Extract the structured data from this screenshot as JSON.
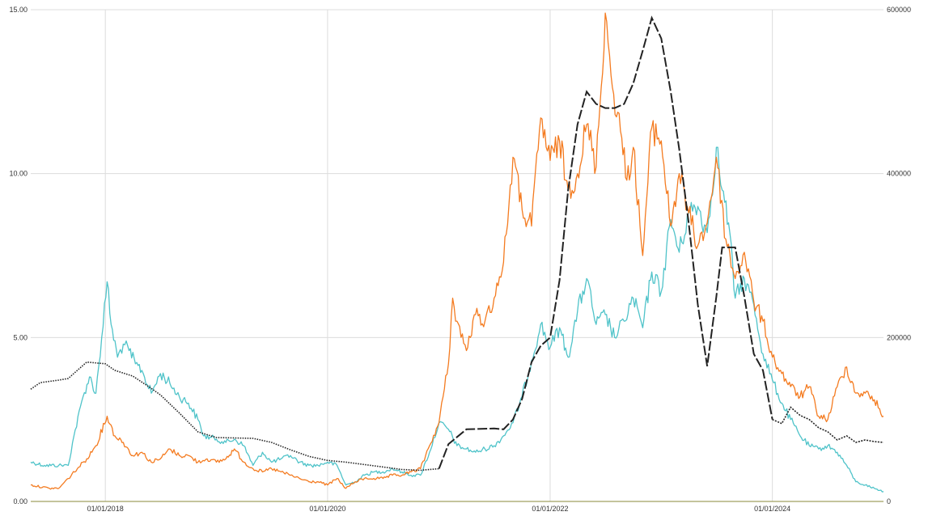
{
  "chart_data": {
    "type": "line",
    "title": "",
    "xlabel": "",
    "ylabel_left": "",
    "ylabel_right": "",
    "grid": true,
    "legend": "none",
    "x_range": [
      "2017-05-01",
      "2024-12-31"
    ],
    "x_ticks": [
      {
        "date": "2018-01-01",
        "label": "01/01/2018"
      },
      {
        "date": "2020-01-01",
        "label": "01/01/2020"
      },
      {
        "date": "2022-01-01",
        "label": "01/01/2022"
      },
      {
        "date": "2024-01-01",
        "label": "01/01/2024"
      }
    ],
    "y_left": {
      "range": [
        0,
        15
      ],
      "ticks": [
        0,
        5,
        10,
        15
      ],
      "tick_labels": [
        "0.00",
        "5.00",
        "10.00",
        "15.00"
      ]
    },
    "y_right": {
      "range": [
        0,
        600000
      ],
      "ticks": [
        0,
        200000,
        400000,
        600000
      ],
      "tick_labels": [
        "0",
        "200000",
        "400000",
        "600000"
      ]
    },
    "series": [
      {
        "axis": "left",
        "color": "#4fc3c9",
        "style": "solid",
        "points": [
          [
            "2017-05-01",
            1.2
          ],
          [
            "2017-06-15",
            1.1
          ],
          [
            "2017-08-01",
            1.1
          ],
          [
            "2017-09-01",
            1.1
          ],
          [
            "2017-09-20",
            2.0
          ],
          [
            "2017-10-20",
            3.2
          ],
          [
            "2017-11-10",
            3.8
          ],
          [
            "2017-12-01",
            3.3
          ],
          [
            "2017-12-20",
            5.0
          ],
          [
            "2018-01-07",
            6.7
          ],
          [
            "2018-01-20",
            5.4
          ],
          [
            "2018-02-10",
            4.4
          ],
          [
            "2018-03-01",
            4.8
          ],
          [
            "2018-03-20",
            4.6
          ],
          [
            "2018-04-10",
            4.2
          ],
          [
            "2018-05-01",
            4.0
          ],
          [
            "2018-06-01",
            3.3
          ],
          [
            "2018-07-01",
            3.9
          ],
          [
            "2018-08-01",
            3.6
          ],
          [
            "2018-09-01",
            3.2
          ],
          [
            "2018-10-01",
            3.0
          ],
          [
            "2018-11-01",
            2.5
          ],
          [
            "2018-11-20",
            2.0
          ],
          [
            "2019-01-01",
            1.9
          ],
          [
            "2019-02-01",
            1.8
          ],
          [
            "2019-03-01",
            1.9
          ],
          [
            "2019-04-01",
            1.7
          ],
          [
            "2019-05-01",
            1.1
          ],
          [
            "2019-06-01",
            1.5
          ],
          [
            "2019-07-01",
            1.2
          ],
          [
            "2019-08-01",
            1.3
          ],
          [
            "2019-09-01",
            1.4
          ],
          [
            "2019-10-01",
            1.2
          ],
          [
            "2019-11-01",
            1.1
          ],
          [
            "2019-12-01",
            1.1
          ],
          [
            "2020-01-01",
            1.2
          ],
          [
            "2020-02-01",
            1.1
          ],
          [
            "2020-03-01",
            0.5
          ],
          [
            "2020-04-01",
            0.6
          ],
          [
            "2020-05-01",
            0.8
          ],
          [
            "2020-06-01",
            0.9
          ],
          [
            "2020-07-01",
            0.9
          ],
          [
            "2020-08-01",
            1.0
          ],
          [
            "2020-09-01",
            0.9
          ],
          [
            "2020-10-01",
            0.8
          ],
          [
            "2020-11-01",
            0.8
          ],
          [
            "2020-12-01",
            1.5
          ],
          [
            "2021-01-01",
            2.4
          ],
          [
            "2021-02-01",
            2.2
          ],
          [
            "2021-03-01",
            1.7
          ],
          [
            "2021-04-01",
            1.6
          ],
          [
            "2021-05-01",
            1.5
          ],
          [
            "2021-06-01",
            1.6
          ],
          [
            "2021-07-01",
            1.7
          ],
          [
            "2021-08-01",
            2.0
          ],
          [
            "2021-09-01",
            2.4
          ],
          [
            "2021-10-01",
            3.2
          ],
          [
            "2021-11-01",
            4.3
          ],
          [
            "2021-12-01",
            5.4
          ],
          [
            "2022-01-01",
            4.7
          ],
          [
            "2022-02-01",
            5.3
          ],
          [
            "2022-03-01",
            4.4
          ],
          [
            "2022-04-01",
            5.8
          ],
          [
            "2022-05-01",
            6.8
          ],
          [
            "2022-06-01",
            5.4
          ],
          [
            "2022-07-01",
            5.7
          ],
          [
            "2022-08-01",
            5.0
          ],
          [
            "2022-09-01",
            5.5
          ],
          [
            "2022-10-01",
            6.2
          ],
          [
            "2022-11-01",
            5.3
          ],
          [
            "2022-12-01",
            7.0
          ],
          [
            "2023-01-01",
            6.4
          ],
          [
            "2023-02-01",
            8.6
          ],
          [
            "2023-03-01",
            7.6
          ],
          [
            "2023-04-01",
            8.8
          ],
          [
            "2023-05-01",
            9.0
          ],
          [
            "2023-06-01",
            8.2
          ],
          [
            "2023-07-01",
            10.8
          ],
          [
            "2023-07-20",
            9.5
          ],
          [
            "2023-08-10",
            8.5
          ],
          [
            "2023-09-01",
            6.2
          ],
          [
            "2023-10-01",
            6.8
          ],
          [
            "2023-11-01",
            6.0
          ],
          [
            "2023-12-01",
            4.5
          ],
          [
            "2024-01-01",
            3.7
          ],
          [
            "2024-02-01",
            3.0
          ],
          [
            "2024-03-01",
            2.5
          ],
          [
            "2024-04-01",
            2.0
          ],
          [
            "2024-05-01",
            1.7
          ],
          [
            "2024-06-01",
            1.6
          ],
          [
            "2024-07-01",
            1.7
          ],
          [
            "2024-08-01",
            1.5
          ],
          [
            "2024-09-01",
            1.1
          ],
          [
            "2024-10-01",
            0.6
          ],
          [
            "2024-11-01",
            0.5
          ],
          [
            "2024-12-01",
            0.4
          ],
          [
            "2024-12-31",
            0.3
          ]
        ]
      },
      {
        "axis": "left",
        "color": "#f47b20",
        "style": "solid",
        "points": [
          [
            "2017-05-01",
            0.5
          ],
          [
            "2017-07-01",
            0.4
          ],
          [
            "2017-08-01",
            0.4
          ],
          [
            "2017-09-01",
            0.7
          ],
          [
            "2017-10-01",
            1.0
          ],
          [
            "2017-11-01",
            1.3
          ],
          [
            "2017-12-01",
            1.7
          ],
          [
            "2018-01-07",
            2.6
          ],
          [
            "2018-02-01",
            2.0
          ],
          [
            "2018-03-01",
            1.8
          ],
          [
            "2018-04-01",
            1.4
          ],
          [
            "2018-05-01",
            1.5
          ],
          [
            "2018-06-01",
            1.2
          ],
          [
            "2018-07-01",
            1.3
          ],
          [
            "2018-08-01",
            1.6
          ],
          [
            "2018-09-01",
            1.4
          ],
          [
            "2018-10-01",
            1.4
          ],
          [
            "2018-11-01",
            1.2
          ],
          [
            "2018-12-01",
            1.3
          ],
          [
            "2019-01-01",
            1.2
          ],
          [
            "2019-02-01",
            1.3
          ],
          [
            "2019-03-01",
            1.6
          ],
          [
            "2019-04-01",
            1.2
          ],
          [
            "2019-05-01",
            1.0
          ],
          [
            "2019-06-01",
            0.9
          ],
          [
            "2019-07-01",
            1.0
          ],
          [
            "2019-08-01",
            0.9
          ],
          [
            "2019-09-01",
            0.8
          ],
          [
            "2019-10-01",
            0.7
          ],
          [
            "2019-11-01",
            0.6
          ],
          [
            "2019-12-01",
            0.6
          ],
          [
            "2020-01-01",
            0.5
          ],
          [
            "2020-02-01",
            0.7
          ],
          [
            "2020-03-01",
            0.4
          ],
          [
            "2020-04-01",
            0.6
          ],
          [
            "2020-05-01",
            0.7
          ],
          [
            "2020-06-01",
            0.7
          ],
          [
            "2020-07-01",
            0.7
          ],
          [
            "2020-08-01",
            0.8
          ],
          [
            "2020-09-01",
            0.8
          ],
          [
            "2020-10-01",
            0.9
          ],
          [
            "2020-11-01",
            1.0
          ],
          [
            "2020-12-01",
            1.7
          ],
          [
            "2021-01-01",
            2.4
          ],
          [
            "2021-02-01",
            4.2
          ],
          [
            "2021-02-15",
            6.2
          ],
          [
            "2021-03-01",
            5.5
          ],
          [
            "2021-04-01",
            4.6
          ],
          [
            "2021-05-01",
            5.7
          ],
          [
            "2021-06-01",
            5.5
          ],
          [
            "2021-07-01",
            6.2
          ],
          [
            "2021-08-01",
            7.3
          ],
          [
            "2021-09-01",
            10.5
          ],
          [
            "2021-10-01",
            8.9
          ],
          [
            "2021-11-01",
            8.4
          ],
          [
            "2021-12-01",
            11.7
          ],
          [
            "2022-01-01",
            10.4
          ],
          [
            "2022-02-01",
            11.0
          ],
          [
            "2022-03-01",
            9.5
          ],
          [
            "2022-04-01",
            10.0
          ],
          [
            "2022-05-01",
            11.5
          ],
          [
            "2022-06-01",
            10.2
          ],
          [
            "2022-07-01",
            14.9
          ],
          [
            "2022-07-20",
            13.0
          ],
          [
            "2022-08-20",
            11.3
          ],
          [
            "2022-09-10",
            9.8
          ],
          [
            "2022-10-01",
            10.8
          ],
          [
            "2022-11-01",
            7.5
          ],
          [
            "2022-12-01",
            11.4
          ],
          [
            "2023-01-01",
            11.0
          ],
          [
            "2023-02-01",
            8.4
          ],
          [
            "2023-03-01",
            10.0
          ],
          [
            "2023-04-01",
            8.8
          ],
          [
            "2023-05-01",
            7.8
          ],
          [
            "2023-06-01",
            8.5
          ],
          [
            "2023-07-01",
            10.5
          ],
          [
            "2023-08-01",
            8.0
          ],
          [
            "2023-09-01",
            6.8
          ],
          [
            "2023-10-01",
            7.6
          ],
          [
            "2023-11-01",
            6.1
          ],
          [
            "2023-12-01",
            5.5
          ],
          [
            "2024-01-01",
            4.4
          ],
          [
            "2024-02-01",
            3.9
          ],
          [
            "2024-03-01",
            3.5
          ],
          [
            "2024-04-01",
            3.2
          ],
          [
            "2024-05-01",
            3.5
          ],
          [
            "2024-06-01",
            2.6
          ],
          [
            "2024-07-01",
            2.5
          ],
          [
            "2024-08-01",
            3.5
          ],
          [
            "2024-09-01",
            4.1
          ],
          [
            "2024-10-01",
            3.3
          ],
          [
            "2024-11-01",
            3.3
          ],
          [
            "2024-12-01",
            3.1
          ],
          [
            "2024-12-31",
            2.6
          ]
        ]
      },
      {
        "axis": "right",
        "color": "#222222",
        "style": "dotted-then-dashed",
        "points": [
          [
            "2017-05-01",
            137000
          ],
          [
            "2017-06-01",
            145000
          ],
          [
            "2017-08-01",
            148000
          ],
          [
            "2017-09-01",
            150000
          ],
          [
            "2017-10-01",
            160000
          ],
          [
            "2017-11-01",
            170000
          ],
          [
            "2018-01-01",
            168000
          ],
          [
            "2018-02-01",
            160000
          ],
          [
            "2018-04-01",
            153000
          ],
          [
            "2018-06-01",
            138000
          ],
          [
            "2018-07-01",
            130000
          ],
          [
            "2018-09-01",
            108000
          ],
          [
            "2018-11-01",
            85000
          ],
          [
            "2019-01-01",
            78000
          ],
          [
            "2019-05-01",
            77000
          ],
          [
            "2019-07-01",
            72000
          ],
          [
            "2019-09-01",
            63000
          ],
          [
            "2019-11-01",
            55000
          ],
          [
            "2020-01-01",
            50000
          ],
          [
            "2020-03-01",
            48000
          ],
          [
            "2020-05-01",
            45000
          ],
          [
            "2020-07-01",
            42000
          ],
          [
            "2020-09-01",
            39000
          ],
          [
            "2020-11-01",
            38000
          ],
          [
            "2021-01-01",
            40000
          ],
          [
            "2021-02-01",
            70000
          ],
          [
            "2021-04-01",
            88000
          ],
          [
            "2021-07-01",
            89000
          ],
          [
            "2021-08-01",
            88000
          ],
          [
            "2021-09-01",
            100000
          ],
          [
            "2021-10-01",
            125000
          ],
          [
            "2021-11-01",
            170000
          ],
          [
            "2021-12-01",
            190000
          ],
          [
            "2022-01-01",
            200000
          ],
          [
            "2022-02-01",
            270000
          ],
          [
            "2022-03-01",
            380000
          ],
          [
            "2022-04-01",
            460000
          ],
          [
            "2022-05-01",
            500000
          ],
          [
            "2022-06-01",
            485000
          ],
          [
            "2022-07-01",
            480000
          ],
          [
            "2022-08-01",
            480000
          ],
          [
            "2022-09-01",
            485000
          ],
          [
            "2022-10-01",
            510000
          ],
          [
            "2022-11-01",
            550000
          ],
          [
            "2022-12-01",
            590000
          ],
          [
            "2023-01-01",
            565000
          ],
          [
            "2023-02-01",
            500000
          ],
          [
            "2023-03-01",
            430000
          ],
          [
            "2023-04-01",
            340000
          ],
          [
            "2023-05-01",
            240000
          ],
          [
            "2023-06-01",
            165000
          ],
          [
            "2023-07-01",
            250000
          ],
          [
            "2023-07-20",
            310000
          ],
          [
            "2023-09-01",
            310000
          ],
          [
            "2023-10-01",
            250000
          ],
          [
            "2023-11-01",
            180000
          ],
          [
            "2023-12-01",
            160000
          ],
          [
            "2024-01-01",
            100000
          ],
          [
            "2024-02-01",
            95000
          ],
          [
            "2024-03-01",
            115000
          ],
          [
            "2024-04-01",
            105000
          ],
          [
            "2024-05-01",
            100000
          ],
          [
            "2024-06-01",
            90000
          ],
          [
            "2024-07-01",
            85000
          ],
          [
            "2024-08-01",
            75000
          ],
          [
            "2024-09-01",
            80000
          ],
          [
            "2024-10-01",
            72000
          ],
          [
            "2024-11-01",
            75000
          ],
          [
            "2024-12-01",
            73000
          ],
          [
            "2024-12-31",
            72000
          ]
        ]
      }
    ]
  }
}
